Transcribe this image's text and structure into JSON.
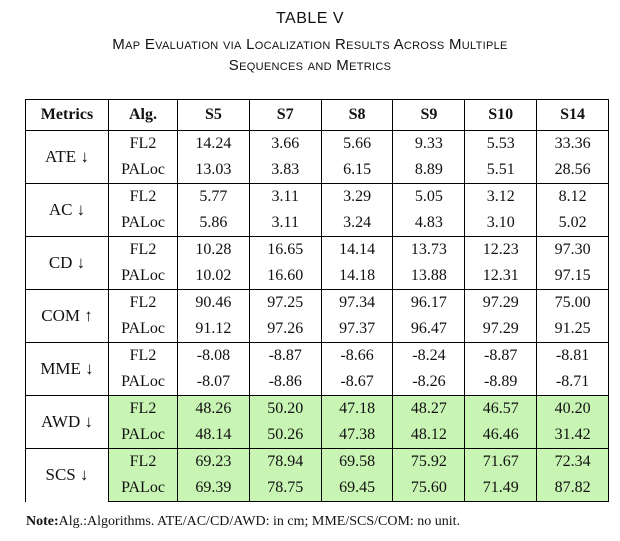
{
  "table_label": "TABLE V",
  "caption_line1": "Map Evaluation via Localization Results Across Multiple",
  "caption_line2": "Sequences and Metrics",
  "headers": [
    "Metrics",
    "Alg.",
    "S5",
    "S7",
    "S8",
    "S9",
    "S10",
    "S14"
  ],
  "rows": [
    {
      "metric": "ATE ↓",
      "highlight": false,
      "fl2": [
        "FL2",
        "14.24",
        "3.66",
        "5.66",
        "9.33",
        "5.53",
        "33.36"
      ],
      "paloc": [
        "PALoc",
        "13.03",
        "3.83",
        "6.15",
        "8.89",
        "5.51",
        "28.56"
      ]
    },
    {
      "metric": "AC ↓",
      "highlight": false,
      "fl2": [
        "FL2",
        "5.77",
        "3.11",
        "3.29",
        "5.05",
        "3.12",
        "8.12"
      ],
      "paloc": [
        "PALoc",
        "5.86",
        "3.11",
        "3.24",
        "4.83",
        "3.10",
        "5.02"
      ]
    },
    {
      "metric": "CD ↓",
      "highlight": false,
      "fl2": [
        "FL2",
        "10.28",
        "16.65",
        "14.14",
        "13.73",
        "12.23",
        "97.30"
      ],
      "paloc": [
        "PALoc",
        "10.02",
        "16.60",
        "14.18",
        "13.88",
        "12.31",
        "97.15"
      ]
    },
    {
      "metric": "COM ↑",
      "highlight": false,
      "fl2": [
        "FL2",
        "90.46",
        "97.25",
        "97.34",
        "96.17",
        "97.29",
        "75.00"
      ],
      "paloc": [
        "PALoc",
        "91.12",
        "97.26",
        "97.37",
        "96.47",
        "97.29",
        "91.25"
      ]
    },
    {
      "metric": "MME ↓",
      "highlight": false,
      "fl2": [
        "FL2",
        "-8.08",
        "-8.87",
        "-8.66",
        "-8.24",
        "-8.87",
        "-8.81"
      ],
      "paloc": [
        "PALoc",
        "-8.07",
        "-8.86",
        "-8.67",
        "-8.26",
        "-8.89",
        "-8.71"
      ]
    },
    {
      "metric": "AWD ↓",
      "highlight": true,
      "fl2": [
        "FL2",
        "48.26",
        "50.20",
        "47.18",
        "48.27",
        "46.57",
        "40.20"
      ],
      "paloc": [
        "PALoc",
        "48.14",
        "50.26",
        "47.38",
        "48.12",
        "46.46",
        "31.42"
      ]
    },
    {
      "metric": "SCS ↓",
      "highlight": true,
      "fl2": [
        "FL2",
        "69.23",
        "78.94",
        "69.58",
        "75.92",
        "71.67",
        "72.34"
      ],
      "paloc": [
        "PALoc",
        "69.39",
        "78.75",
        "69.45",
        "75.60",
        "71.49",
        "87.82"
      ]
    }
  ],
  "note_label": "Note:",
  "note_text": "Alg.:Algorithms. ATE/AC/CD/AWD: in cm; MME/SCS/COM: no unit.",
  "colors": {
    "highlight": "#c8f4b4"
  }
}
